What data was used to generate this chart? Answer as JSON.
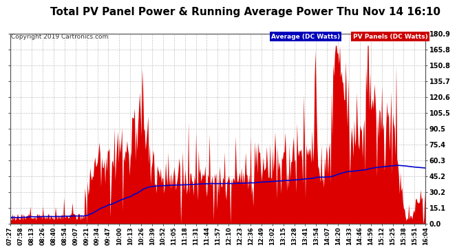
{
  "title": "Total PV Panel Power & Running Average Power Thu Nov 14 16:10",
  "copyright": "Copyright 2019 Cartronics.com",
  "legend_avg": "Average (DC Watts)",
  "legend_pv": "PV Panels (DC Watts)",
  "legend_avg_bg": "#0000bb",
  "legend_pv_bg": "#cc0000",
  "legend_avg_fg": "#ffffff",
  "legend_pv_fg": "#ffffff",
  "yticks": [
    0.0,
    15.1,
    30.2,
    45.2,
    60.3,
    75.4,
    90.5,
    105.5,
    120.6,
    135.7,
    150.8,
    165.8,
    180.9
  ],
  "ymax": 180.9,
  "ymin": 0.0,
  "background_color": "#ffffff",
  "plot_bg_color": "#ffffff",
  "grid_color": "#999999",
  "bar_color": "#dd0000",
  "line_color": "#0000cc",
  "title_fontsize": 11,
  "xtick_labels": [
    "07:27",
    "07:58",
    "08:13",
    "08:26",
    "08:40",
    "08:54",
    "09:07",
    "09:21",
    "09:34",
    "09:47",
    "10:00",
    "10:13",
    "10:26",
    "10:39",
    "10:52",
    "11:05",
    "11:18",
    "11:31",
    "11:44",
    "11:57",
    "12:10",
    "12:23",
    "12:36",
    "12:49",
    "13:02",
    "13:15",
    "13:28",
    "13:41",
    "13:54",
    "14:07",
    "14:20",
    "14:33",
    "14:46",
    "14:59",
    "15:12",
    "15:25",
    "15:38",
    "15:51",
    "16:04"
  ]
}
